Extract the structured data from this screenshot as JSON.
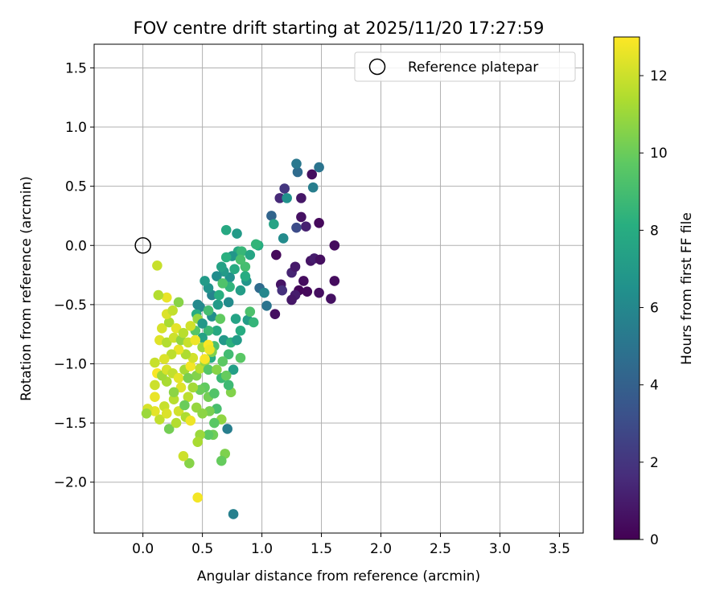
{
  "chart_data": {
    "type": "scatter",
    "title": "FOV centre drift starting at 2025/11/20 17:27:59",
    "xlabel": "Angular distance from reference (arcmin)",
    "ylabel": "Rotation from reference (arcmin)",
    "xlim": [
      -0.41,
      3.7
    ],
    "ylim": [
      -2.43,
      1.7
    ],
    "x_ticks": [
      0.0,
      0.5,
      1.0,
      1.5,
      2.0,
      2.5,
      3.0,
      3.5
    ],
    "x_tick_labels": [
      "0.0",
      "0.5",
      "1.0",
      "1.5",
      "2.0",
      "2.5",
      "3.0",
      "3.5"
    ],
    "y_ticks": [
      -2.0,
      -1.5,
      -1.0,
      -0.5,
      0.0,
      0.5,
      1.0,
      1.5
    ],
    "y_tick_labels": [
      "−2.0",
      "−1.5",
      "−1.0",
      "−0.5",
      "0.0",
      "0.5",
      "1.0",
      "1.5"
    ],
    "grid": true,
    "legend": {
      "placement": "top-right",
      "label": "Reference platepar"
    },
    "reference_point": {
      "x": 0.0,
      "y": 0.0
    },
    "colorbar": {
      "label": "Hours from first FF file",
      "range": [
        0,
        13
      ],
      "ticks": [
        0,
        2,
        4,
        6,
        8,
        10,
        12
      ],
      "tick_labels": [
        "0",
        "2",
        "4",
        "6",
        "8",
        "10",
        "12"
      ],
      "colormap": "viridis"
    },
    "points": [
      {
        "x": 1.42,
        "y": 0.6,
        "t": 0.5
      },
      {
        "x": 1.48,
        "y": 0.19,
        "t": 0.3
      },
      {
        "x": 1.61,
        "y": 0.0,
        "t": 0.4
      },
      {
        "x": 1.33,
        "y": 0.4,
        "t": 0.8
      },
      {
        "x": 1.33,
        "y": 0.24,
        "t": 0.6
      },
      {
        "x": 1.37,
        "y": 0.16,
        "t": 1.2
      },
      {
        "x": 1.19,
        "y": 0.48,
        "t": 2.0
      },
      {
        "x": 1.15,
        "y": 0.4,
        "t": 1.5
      },
      {
        "x": 1.12,
        "y": -0.08,
        "t": 0.3
      },
      {
        "x": 1.41,
        "y": -0.13,
        "t": 0.7
      },
      {
        "x": 1.44,
        "y": -0.11,
        "t": 1.0
      },
      {
        "x": 1.49,
        "y": -0.12,
        "t": 0.5
      },
      {
        "x": 1.35,
        "y": -0.3,
        "t": 0.4
      },
      {
        "x": 1.25,
        "y": -0.23,
        "t": 1.3
      },
      {
        "x": 1.28,
        "y": -0.18,
        "t": 0.9
      },
      {
        "x": 1.16,
        "y": -0.33,
        "t": 0.7
      },
      {
        "x": 1.31,
        "y": -0.38,
        "t": 0.2
      },
      {
        "x": 1.38,
        "y": -0.39,
        "t": 0.3
      },
      {
        "x": 1.28,
        "y": -0.42,
        "t": 1.0
      },
      {
        "x": 1.25,
        "y": -0.46,
        "t": 0.8
      },
      {
        "x": 1.48,
        "y": -0.4,
        "t": 0.5
      },
      {
        "x": 1.58,
        "y": -0.45,
        "t": 0.6
      },
      {
        "x": 1.61,
        "y": -0.3,
        "t": 0.4
      },
      {
        "x": 1.11,
        "y": -0.58,
        "t": 0.5
      },
      {
        "x": 1.17,
        "y": -0.38,
        "t": 1.8
      },
      {
        "x": 1.29,
        "y": 0.15,
        "t": 3.0
      },
      {
        "x": 1.3,
        "y": 0.62,
        "t": 4.5
      },
      {
        "x": 1.48,
        "y": 0.66,
        "t": 5.0
      },
      {
        "x": 1.29,
        "y": 0.69,
        "t": 5.2
      },
      {
        "x": 1.43,
        "y": 0.49,
        "t": 5.5
      },
      {
        "x": 1.08,
        "y": 0.25,
        "t": 4.2
      },
      {
        "x": 1.21,
        "y": 0.4,
        "t": 6.5
      },
      {
        "x": 1.1,
        "y": 0.18,
        "t": 7.5
      },
      {
        "x": 1.18,
        "y": 0.06,
        "t": 6.2
      },
      {
        "x": 0.98,
        "y": -0.36,
        "t": 4.5
      },
      {
        "x": 1.04,
        "y": -0.51,
        "t": 5.0
      },
      {
        "x": 1.02,
        "y": -0.4,
        "t": 6.0
      },
      {
        "x": 0.97,
        "y": 0.0,
        "t": 8.0
      },
      {
        "x": 0.95,
        "y": 0.01,
        "t": 8.5
      },
      {
        "x": 0.87,
        "y": -0.3,
        "t": 6.8
      },
      {
        "x": 0.82,
        "y": -0.38,
        "t": 7.2
      },
      {
        "x": 0.73,
        "y": -0.27,
        "t": 6.5
      },
      {
        "x": 0.68,
        "y": -0.22,
        "t": 7.0
      },
      {
        "x": 0.8,
        "y": -0.05,
        "t": 7.8
      },
      {
        "x": 0.75,
        "y": -0.09,
        "t": 6.8
      },
      {
        "x": 0.7,
        "y": -0.1,
        "t": 8.2
      },
      {
        "x": 0.66,
        "y": -0.18,
        "t": 7.4
      },
      {
        "x": 0.62,
        "y": -0.26,
        "t": 6.3
      },
      {
        "x": 0.58,
        "y": -0.42,
        "t": 5.8
      },
      {
        "x": 0.55,
        "y": -0.36,
        "t": 6.6
      },
      {
        "x": 0.63,
        "y": -0.5,
        "t": 7.0
      },
      {
        "x": 0.72,
        "y": -0.48,
        "t": 6.2
      },
      {
        "x": 0.78,
        "y": -0.62,
        "t": 7.5
      },
      {
        "x": 0.82,
        "y": -0.72,
        "t": 8.0
      },
      {
        "x": 0.88,
        "y": -0.63,
        "t": 7.2
      },
      {
        "x": 0.93,
        "y": -0.65,
        "t": 8.5
      },
      {
        "x": 0.9,
        "y": -0.56,
        "t": 9.2
      },
      {
        "x": 0.52,
        "y": -0.3,
        "t": 7.0
      },
      {
        "x": 0.48,
        "y": -0.52,
        "t": 6.0
      },
      {
        "x": 0.45,
        "y": -0.58,
        "t": 8.0
      },
      {
        "x": 0.58,
        "y": -0.6,
        "t": 6.4
      },
      {
        "x": 0.62,
        "y": -0.72,
        "t": 7.8
      },
      {
        "x": 0.68,
        "y": -0.8,
        "t": 6.9
      },
      {
        "x": 0.74,
        "y": -0.82,
        "t": 8.3
      },
      {
        "x": 0.79,
        "y": -0.8,
        "t": 7.1
      },
      {
        "x": 0.55,
        "y": -0.72,
        "t": 8.8
      },
      {
        "x": 0.5,
        "y": -0.78,
        "t": 7.4
      },
      {
        "x": 0.44,
        "y": -0.72,
        "t": 9.5
      },
      {
        "x": 0.7,
        "y": 0.13,
        "t": 7.8
      },
      {
        "x": 0.79,
        "y": 0.1,
        "t": 7.0
      },
      {
        "x": 0.83,
        "y": -0.05,
        "t": 8.6
      },
      {
        "x": 0.9,
        "y": -0.08,
        "t": 7.6
      },
      {
        "x": 0.86,
        "y": -0.18,
        "t": 9.0
      },
      {
        "x": 0.73,
        "y": -0.35,
        "t": 8.4
      },
      {
        "x": 0.65,
        "y": -0.62,
        "t": 9.8
      },
      {
        "x": 0.6,
        "y": -0.85,
        "t": 9.2
      },
      {
        "x": 0.57,
        "y": -0.95,
        "t": 8.0
      },
      {
        "x": 0.72,
        "y": -0.92,
        "t": 8.9
      },
      {
        "x": 0.76,
        "y": -1.05,
        "t": 7.3
      },
      {
        "x": 0.82,
        "y": -0.95,
        "t": 9.6
      },
      {
        "x": 0.71,
        "y": -1.55,
        "t": 5.5
      },
      {
        "x": 0.76,
        "y": -2.27,
        "t": 5.6
      },
      {
        "x": 0.52,
        "y": -1.2,
        "t": 9.8
      },
      {
        "x": 0.55,
        "y": -1.28,
        "t": 10.2
      },
      {
        "x": 0.6,
        "y": -1.25,
        "t": 9.4
      },
      {
        "x": 0.66,
        "y": -1.12,
        "t": 8.7
      },
      {
        "x": 0.7,
        "y": -1.1,
        "t": 9.9
      },
      {
        "x": 0.74,
        "y": -1.24,
        "t": 10.5
      },
      {
        "x": 0.62,
        "y": -1.38,
        "t": 9.1
      },
      {
        "x": 0.56,
        "y": -1.4,
        "t": 10.3
      },
      {
        "x": 0.66,
        "y": -1.47,
        "t": 10.8
      },
      {
        "x": 0.59,
        "y": -1.6,
        "t": 10.1
      },
      {
        "x": 0.55,
        "y": -1.6,
        "t": 9.7
      },
      {
        "x": 0.69,
        "y": -1.76,
        "t": 10.4
      },
      {
        "x": 0.66,
        "y": -1.82,
        "t": 9.9
      },
      {
        "x": 0.48,
        "y": -1.6,
        "t": 11.0
      },
      {
        "x": 0.46,
        "y": -1.66,
        "t": 11.3
      },
      {
        "x": 0.39,
        "y": -1.84,
        "t": 10.6
      },
      {
        "x": 0.34,
        "y": -1.78,
        "t": 12.0
      },
      {
        "x": 0.46,
        "y": -2.13,
        "t": 12.8
      },
      {
        "x": 0.22,
        "y": -1.55,
        "t": 10.2
      },
      {
        "x": 0.28,
        "y": -1.5,
        "t": 11.5
      },
      {
        "x": 0.14,
        "y": -1.47,
        "t": 11.8
      },
      {
        "x": 0.1,
        "y": -1.4,
        "t": 12.5
      },
      {
        "x": 0.04,
        "y": -1.38,
        "t": 12.2
      },
      {
        "x": 0.03,
        "y": -1.42,
        "t": 11.0
      },
      {
        "x": 0.1,
        "y": -1.28,
        "t": 12.6
      },
      {
        "x": 0.18,
        "y": -1.36,
        "t": 11.9
      },
      {
        "x": 0.2,
        "y": -1.42,
        "t": 12.3
      },
      {
        "x": 0.26,
        "y": -1.3,
        "t": 11.6
      },
      {
        "x": 0.3,
        "y": -1.4,
        "t": 12.1
      },
      {
        "x": 0.36,
        "y": -1.45,
        "t": 11.4
      },
      {
        "x": 0.4,
        "y": -1.48,
        "t": 12.7
      },
      {
        "x": 0.45,
        "y": -1.37,
        "t": 10.9
      },
      {
        "x": 0.38,
        "y": -1.28,
        "t": 11.7
      },
      {
        "x": 0.32,
        "y": -1.2,
        "t": 12.4
      },
      {
        "x": 0.26,
        "y": -1.24,
        "t": 10.7
      },
      {
        "x": 0.2,
        "y": -1.15,
        "t": 11.3
      },
      {
        "x": 0.1,
        "y": -1.18,
        "t": 12.0
      },
      {
        "x": 0.12,
        "y": -1.08,
        "t": 12.9
      },
      {
        "x": 0.16,
        "y": -1.1,
        "t": 11.1
      },
      {
        "x": 0.2,
        "y": -1.05,
        "t": 12.2
      },
      {
        "x": 0.25,
        "y": -1.08,
        "t": 11.8
      },
      {
        "x": 0.3,
        "y": -1.12,
        "t": 12.5
      },
      {
        "x": 0.35,
        "y": -1.05,
        "t": 11.2
      },
      {
        "x": 0.4,
        "y": -1.02,
        "t": 12.8
      },
      {
        "x": 0.45,
        "y": -1.1,
        "t": 10.5
      },
      {
        "x": 0.48,
        "y": -1.04,
        "t": 11.6
      },
      {
        "x": 0.52,
        "y": -0.98,
        "t": 10.9
      },
      {
        "x": 0.42,
        "y": -0.95,
        "t": 12.1
      },
      {
        "x": 0.36,
        "y": -0.92,
        "t": 11.4
      },
      {
        "x": 0.3,
        "y": -0.88,
        "t": 12.6
      },
      {
        "x": 0.24,
        "y": -0.92,
        "t": 11.7
      },
      {
        "x": 0.18,
        "y": -0.96,
        "t": 12.3
      },
      {
        "x": 0.1,
        "y": -0.99,
        "t": 11.9
      },
      {
        "x": 0.14,
        "y": -0.8,
        "t": 12.4
      },
      {
        "x": 0.2,
        "y": -0.82,
        "t": 11.5
      },
      {
        "x": 0.26,
        "y": -0.78,
        "t": 12.0
      },
      {
        "x": 0.32,
        "y": -0.8,
        "t": 10.8
      },
      {
        "x": 0.38,
        "y": -0.82,
        "t": 11.9
      },
      {
        "x": 0.44,
        "y": -0.8,
        "t": 12.7
      },
      {
        "x": 0.5,
        "y": -0.86,
        "t": 11.0
      },
      {
        "x": 0.55,
        "y": -0.84,
        "t": 12.9
      },
      {
        "x": 0.58,
        "y": -0.9,
        "t": 10.4
      },
      {
        "x": 0.16,
        "y": -0.7,
        "t": 12.2
      },
      {
        "x": 0.22,
        "y": -0.65,
        "t": 11.3
      },
      {
        "x": 0.28,
        "y": -0.7,
        "t": 12.5
      },
      {
        "x": 0.34,
        "y": -0.74,
        "t": 11.6
      },
      {
        "x": 0.4,
        "y": -0.68,
        "t": 12.1
      },
      {
        "x": 0.46,
        "y": -0.62,
        "t": 10.9
      },
      {
        "x": 0.2,
        "y": -0.58,
        "t": 12.3
      },
      {
        "x": 0.25,
        "y": -0.55,
        "t": 11.8
      },
      {
        "x": 0.3,
        "y": -0.48,
        "t": 10.6
      },
      {
        "x": 0.2,
        "y": -0.44,
        "t": 12.6
      },
      {
        "x": 0.13,
        "y": -0.42,
        "t": 11.5
      },
      {
        "x": 0.12,
        "y": -0.17,
        "t": 11.9
      },
      {
        "x": 0.46,
        "y": -0.5,
        "t": 6.1
      },
      {
        "x": 0.5,
        "y": -0.66,
        "t": 6.9
      },
      {
        "x": 0.55,
        "y": -0.55,
        "t": 9.0
      },
      {
        "x": 0.64,
        "y": -0.42,
        "t": 8.1
      },
      {
        "x": 0.67,
        "y": -0.32,
        "t": 9.3
      },
      {
        "x": 0.77,
        "y": -0.2,
        "t": 7.9
      },
      {
        "x": 0.82,
        "y": -0.12,
        "t": 9.1
      },
      {
        "x": 0.86,
        "y": -0.26,
        "t": 8.0
      },
      {
        "x": 0.55,
        "y": -1.05,
        "t": 9.5
      },
      {
        "x": 0.62,
        "y": -1.05,
        "t": 10.6
      },
      {
        "x": 0.67,
        "y": -0.98,
        "t": 9.7
      },
      {
        "x": 0.72,
        "y": -1.18,
        "t": 8.8
      },
      {
        "x": 0.48,
        "y": -1.22,
        "t": 10.0
      },
      {
        "x": 0.42,
        "y": -1.2,
        "t": 11.2
      },
      {
        "x": 0.38,
        "y": -1.12,
        "t": 10.3
      },
      {
        "x": 0.6,
        "y": -1.5,
        "t": 9.6
      },
      {
        "x": 0.5,
        "y": -1.42,
        "t": 10.7
      },
      {
        "x": 0.35,
        "y": -1.35,
        "t": 10.0
      },
      {
        "x": 0.52,
        "y": -0.96,
        "t": 12.9
      },
      {
        "x": 0.56,
        "y": -0.88,
        "t": 12.7
      }
    ]
  }
}
